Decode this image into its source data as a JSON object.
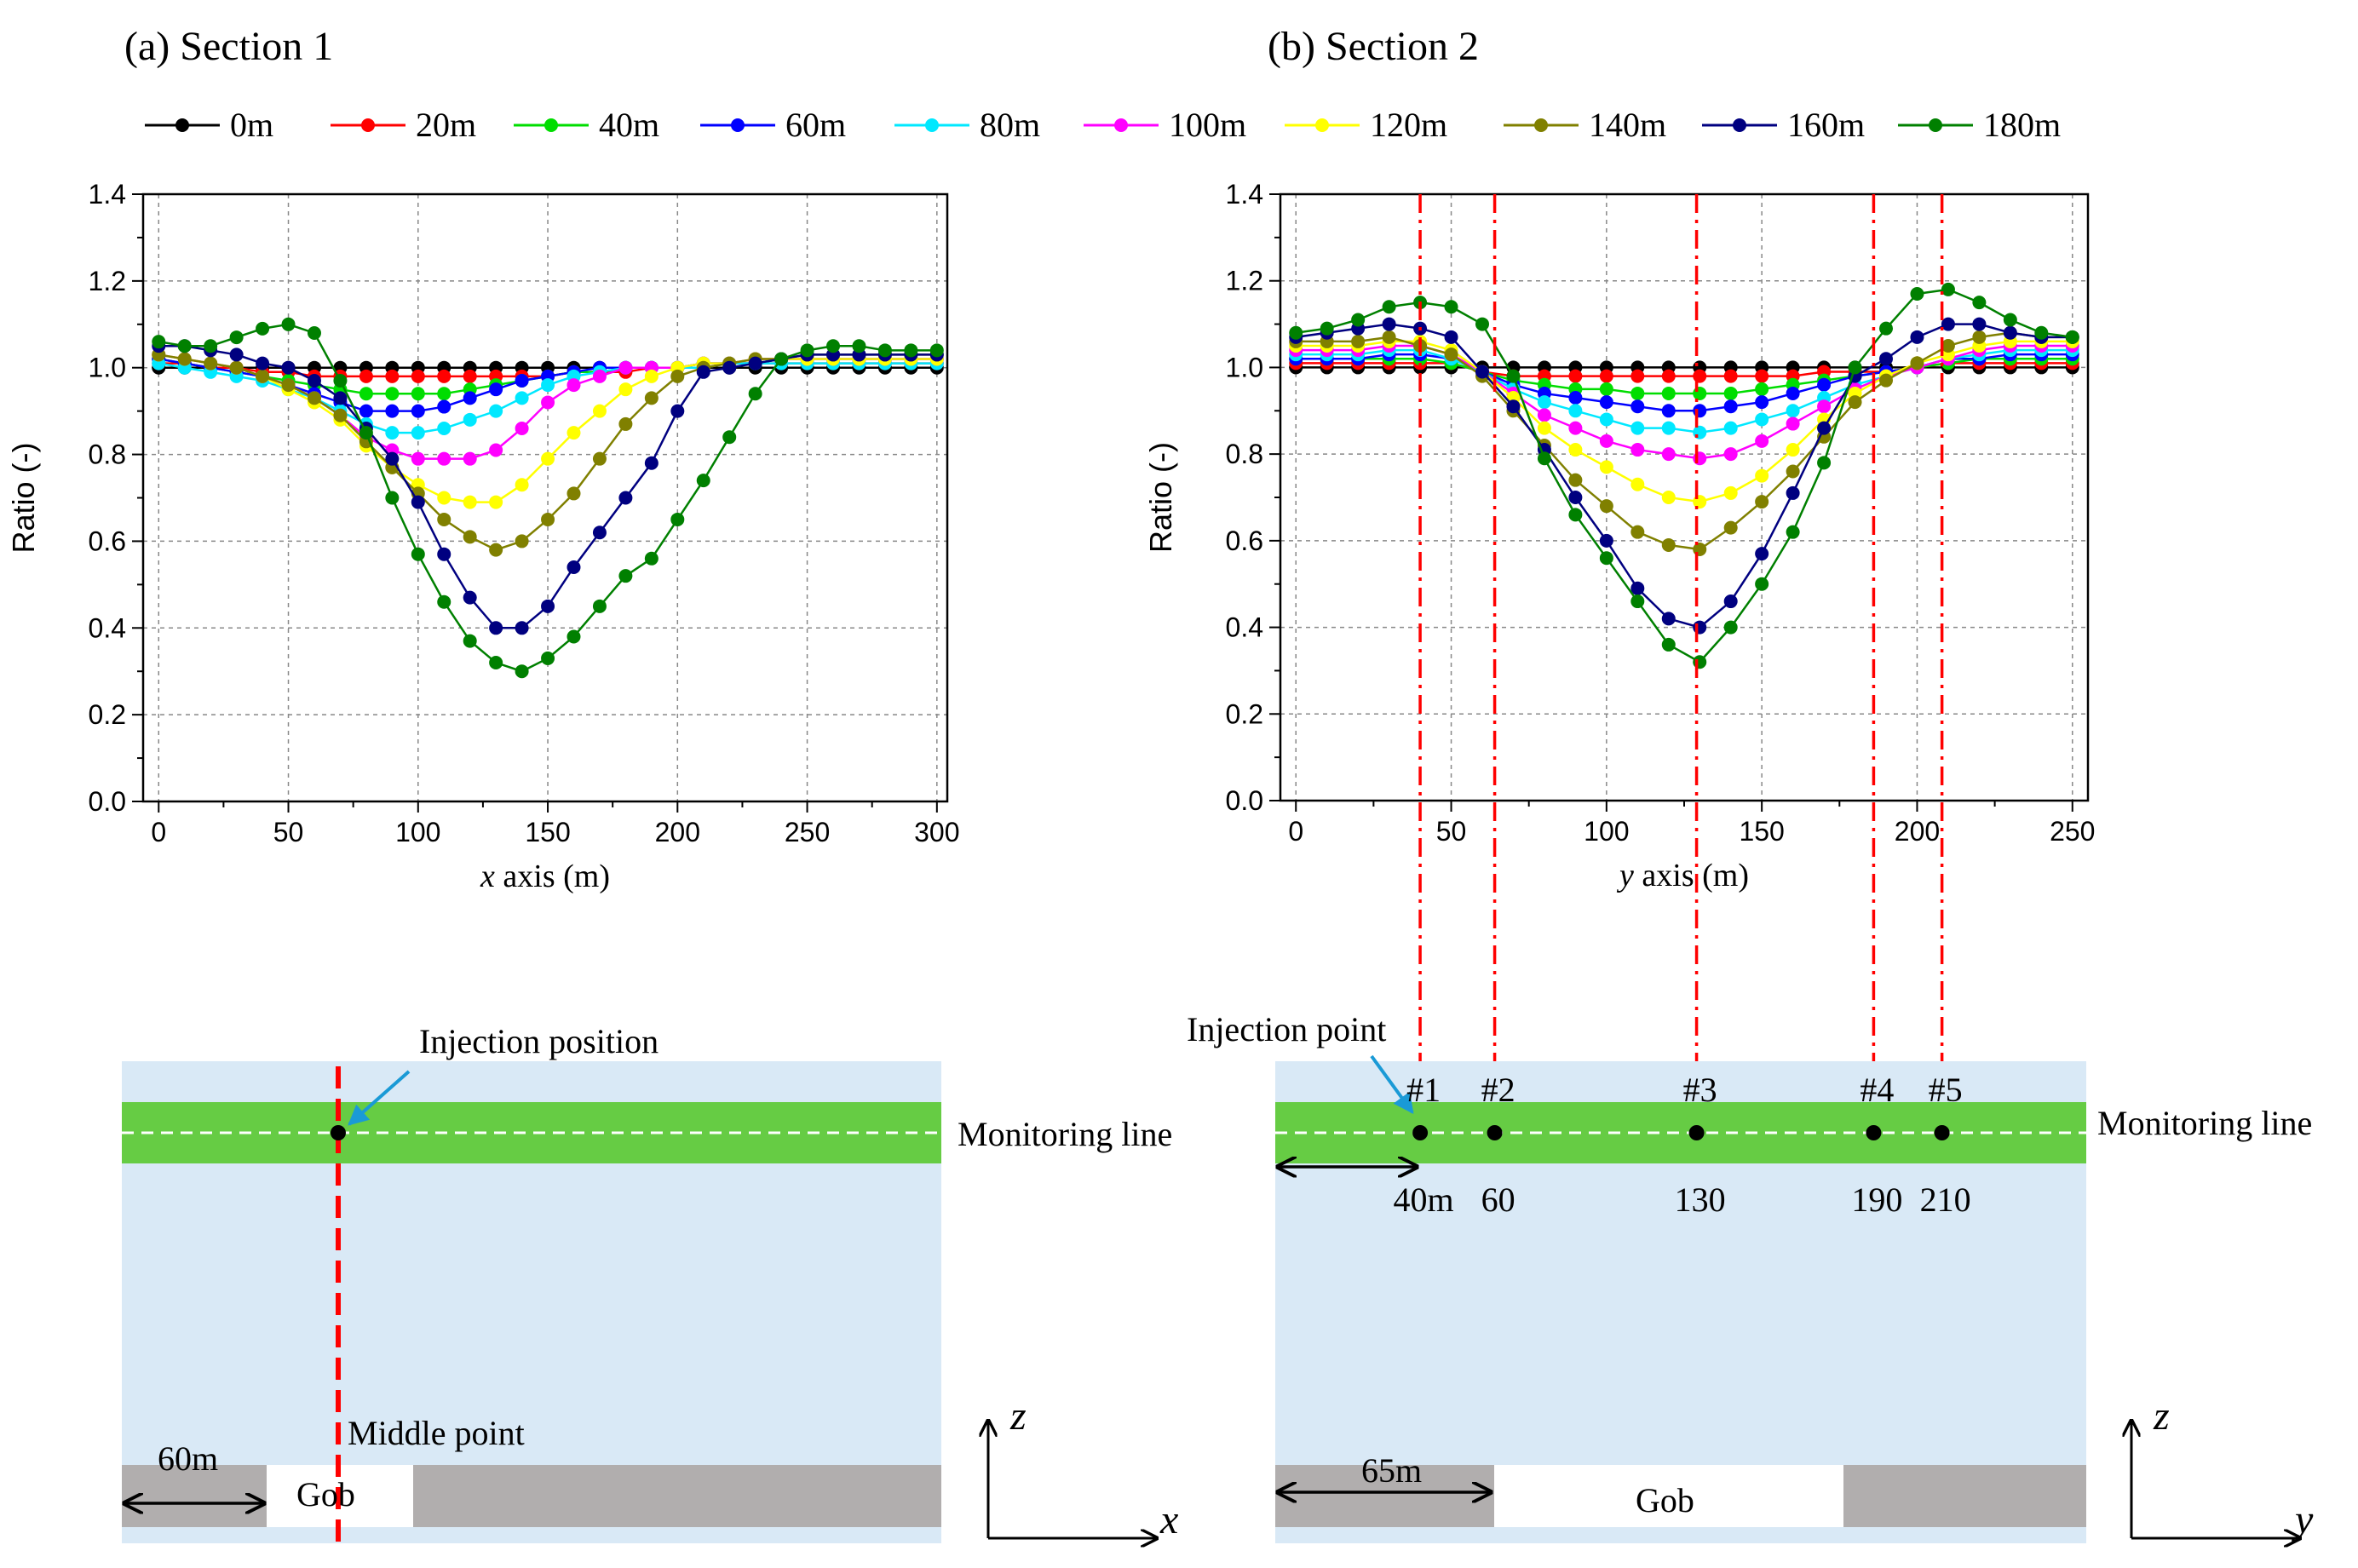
{
  "figure": {
    "panel_a_title": "(a) Section 1",
    "panel_b_title": "(b) Section 2",
    "legend": [
      {
        "label": "0m",
        "color": "#000000"
      },
      {
        "label": "20m",
        "color": "#ff0000"
      },
      {
        "label": "40m",
        "color": "#00dd00"
      },
      {
        "label": "60m",
        "color": "#0000ff"
      },
      {
        "label": "80m",
        "color": "#00e8ff"
      },
      {
        "label": "100m",
        "color": "#ff00ff"
      },
      {
        "label": "120m",
        "color": "#ffff00"
      },
      {
        "label": "140m",
        "color": "#808000"
      },
      {
        "label": "160m",
        "color": "#000080"
      },
      {
        "label": "180m",
        "color": "#008000"
      }
    ]
  },
  "chart_data": [
    {
      "type": "line",
      "title": "(a) Section 1",
      "xlabel_italic": "x",
      "xlabel_rest": " axis (m)",
      "ylabel": "Ratio (-)",
      "xlim": [
        -6,
        304
      ],
      "ylim": [
        0,
        1.4
      ],
      "xticks": [
        "0",
        "50",
        "100",
        "150",
        "200",
        "250",
        "300"
      ],
      "xtick_values": [
        0,
        50,
        100,
        150,
        200,
        250,
        300
      ],
      "yticks": [
        "0.0",
        "0.2",
        "0.4",
        "0.6",
        "0.8",
        "1.0",
        "1.2",
        "1.4"
      ],
      "ytick_values": [
        0,
        0.2,
        0.4,
        0.6,
        0.8,
        1.0,
        1.2,
        1.4
      ],
      "grid": true,
      "x": [
        0,
        10,
        20,
        30,
        40,
        50,
        60,
        70,
        80,
        90,
        100,
        110,
        120,
        130,
        140,
        150,
        160,
        170,
        180,
        190,
        200,
        210,
        220,
        230,
        240,
        250,
        260,
        270,
        280,
        290,
        300
      ],
      "series": [
        {
          "name": "0m",
          "values": [
            1.0,
            1.0,
            1.0,
            1.0,
            1.0,
            1.0,
            1.0,
            1.0,
            1.0,
            1.0,
            1.0,
            1.0,
            1.0,
            1.0,
            1.0,
            1.0,
            1.0,
            1.0,
            1.0,
            1.0,
            1.0,
            1.0,
            1.0,
            1.0,
            1.0,
            1.0,
            1.0,
            1.0,
            1.0,
            1.0,
            1.0
          ]
        },
        {
          "name": "20m",
          "values": [
            1.01,
            1.01,
            1.0,
            1.0,
            0.99,
            0.99,
            0.98,
            0.98,
            0.98,
            0.98,
            0.98,
            0.98,
            0.98,
            0.98,
            0.98,
            0.98,
            0.99,
            0.99,
            0.99,
            1.0,
            1.0,
            1.0,
            1.01,
            1.01,
            1.01,
            1.01,
            1.01,
            1.01,
            1.01,
            1.01,
            1.01
          ]
        },
        {
          "name": "40m",
          "values": [
            1.02,
            1.01,
            1.0,
            0.99,
            0.98,
            0.97,
            0.96,
            0.95,
            0.94,
            0.94,
            0.94,
            0.94,
            0.95,
            0.96,
            0.97,
            0.98,
            0.99,
            0.99,
            1.0,
            1.0,
            1.0,
            1.01,
            1.01,
            1.01,
            1.02,
            1.02,
            1.02,
            1.02,
            1.02,
            1.02,
            1.02
          ]
        },
        {
          "name": "60m",
          "values": [
            1.02,
            1.01,
            1.0,
            0.99,
            0.98,
            0.96,
            0.94,
            0.92,
            0.9,
            0.9,
            0.9,
            0.91,
            0.93,
            0.95,
            0.97,
            0.98,
            0.99,
            1.0,
            1.0,
            1.0,
            1.0,
            1.01,
            1.01,
            1.01,
            1.02,
            1.02,
            1.02,
            1.02,
            1.02,
            1.02,
            1.02
          ]
        },
        {
          "name": "80m",
          "values": [
            1.01,
            1.0,
            0.99,
            0.98,
            0.97,
            0.95,
            0.93,
            0.9,
            0.87,
            0.85,
            0.85,
            0.86,
            0.88,
            0.9,
            0.93,
            0.96,
            0.98,
            0.99,
            1.0,
            1.0,
            1.0,
            1.0,
            1.01,
            1.01,
            1.01,
            1.01,
            1.01,
            1.01,
            1.01,
            1.01,
            1.01
          ]
        },
        {
          "name": "100m",
          "values": [
            1.03,
            1.02,
            1.01,
            1.0,
            0.98,
            0.96,
            0.93,
            0.89,
            0.84,
            0.81,
            0.79,
            0.79,
            0.79,
            0.81,
            0.86,
            0.92,
            0.96,
            0.98,
            1.0,
            1.0,
            1.0,
            1.01,
            1.01,
            1.02,
            1.02,
            1.02,
            1.02,
            1.02,
            1.02,
            1.02,
            1.02
          ]
        },
        {
          "name": "120m",
          "values": [
            1.03,
            1.02,
            1.01,
            1.0,
            0.98,
            0.95,
            0.92,
            0.88,
            0.82,
            0.77,
            0.73,
            0.7,
            0.69,
            0.69,
            0.73,
            0.79,
            0.85,
            0.9,
            0.95,
            0.98,
            1.0,
            1.01,
            1.01,
            1.02,
            1.02,
            1.02,
            1.02,
            1.02,
            1.02,
            1.02,
            1.02
          ]
        },
        {
          "name": "140m",
          "values": [
            1.03,
            1.02,
            1.01,
            1.0,
            0.98,
            0.96,
            0.93,
            0.89,
            0.83,
            0.77,
            0.71,
            0.65,
            0.61,
            0.58,
            0.6,
            0.65,
            0.71,
            0.79,
            0.87,
            0.93,
            0.98,
            1.0,
            1.01,
            1.02,
            1.02,
            1.03,
            1.03,
            1.03,
            1.03,
            1.03,
            1.03
          ]
        },
        {
          "name": "160m",
          "values": [
            1.05,
            1.05,
            1.04,
            1.03,
            1.01,
            1.0,
            0.97,
            0.93,
            0.86,
            0.79,
            0.69,
            0.57,
            0.47,
            0.4,
            0.4,
            0.45,
            0.54,
            0.62,
            0.7,
            0.78,
            0.9,
            0.99,
            1.0,
            1.01,
            1.02,
            1.03,
            1.03,
            1.03,
            1.03,
            1.03,
            1.03
          ]
        },
        {
          "name": "180m",
          "values": [
            1.06,
            1.05,
            1.05,
            1.07,
            1.09,
            1.1,
            1.08,
            0.97,
            0.85,
            0.7,
            0.57,
            0.46,
            0.37,
            0.32,
            0.3,
            0.33,
            0.38,
            0.45,
            0.52,
            0.56,
            0.65,
            0.74,
            0.84,
            0.94,
            1.02,
            1.04,
            1.05,
            1.05,
            1.04,
            1.04,
            1.04
          ]
        }
      ]
    },
    {
      "type": "line",
      "title": "(b) Section 2",
      "xlabel_italic": "y",
      "xlabel_rest": " axis (m)",
      "ylabel": "Ratio (-)",
      "xlim": [
        -5,
        255
      ],
      "ylim": [
        0,
        1.4
      ],
      "xticks": [
        "0",
        "50",
        "100",
        "150",
        "200",
        "250"
      ],
      "xtick_values": [
        0,
        50,
        100,
        150,
        200,
        250
      ],
      "yticks": [
        "0.0",
        "0.2",
        "0.4",
        "0.6",
        "0.8",
        "1.0",
        "1.2",
        "1.4"
      ],
      "ytick_values": [
        0,
        0.2,
        0.4,
        0.6,
        0.8,
        1.0,
        1.2,
        1.4
      ],
      "grid": true,
      "vlines": [
        40,
        64,
        129,
        186,
        208
      ],
      "x": [
        0,
        10,
        20,
        30,
        40,
        50,
        60,
        70,
        80,
        90,
        100,
        110,
        120,
        130,
        140,
        150,
        160,
        170,
        180,
        190,
        200,
        210,
        220,
        230,
        240,
        250
      ],
      "series": [
        {
          "name": "0m",
          "values": [
            1.0,
            1.0,
            1.0,
            1.0,
            1.0,
            1.0,
            1.0,
            1.0,
            1.0,
            1.0,
            1.0,
            1.0,
            1.0,
            1.0,
            1.0,
            1.0,
            1.0,
            1.0,
            1.0,
            1.0,
            1.0,
            1.0,
            1.0,
            1.0,
            1.0,
            1.0
          ]
        },
        {
          "name": "20m",
          "values": [
            1.01,
            1.01,
            1.01,
            1.01,
            1.01,
            1.01,
            0.99,
            0.98,
            0.98,
            0.98,
            0.98,
            0.98,
            0.98,
            0.98,
            0.98,
            0.98,
            0.98,
            0.99,
            0.99,
            0.99,
            1.0,
            1.01,
            1.01,
            1.01,
            1.01,
            1.01
          ]
        },
        {
          "name": "40m",
          "values": [
            1.02,
            1.02,
            1.02,
            1.02,
            1.02,
            1.01,
            0.99,
            0.97,
            0.96,
            0.95,
            0.95,
            0.94,
            0.94,
            0.94,
            0.94,
            0.95,
            0.96,
            0.97,
            0.98,
            0.99,
            1.0,
            1.01,
            1.02,
            1.02,
            1.02,
            1.02
          ]
        },
        {
          "name": "60m",
          "values": [
            1.02,
            1.02,
            1.02,
            1.03,
            1.03,
            1.02,
            0.99,
            0.96,
            0.94,
            0.93,
            0.92,
            0.91,
            0.9,
            0.9,
            0.91,
            0.92,
            0.94,
            0.96,
            0.98,
            0.99,
            1.0,
            1.02,
            1.02,
            1.03,
            1.03,
            1.03
          ]
        },
        {
          "name": "80m",
          "values": [
            1.03,
            1.03,
            1.03,
            1.04,
            1.04,
            1.02,
            0.99,
            0.95,
            0.92,
            0.9,
            0.88,
            0.86,
            0.86,
            0.85,
            0.86,
            0.88,
            0.9,
            0.93,
            0.96,
            0.98,
            1.0,
            1.02,
            1.03,
            1.04,
            1.04,
            1.04
          ]
        },
        {
          "name": "100m",
          "values": [
            1.04,
            1.04,
            1.04,
            1.05,
            1.05,
            1.03,
            0.99,
            0.94,
            0.89,
            0.86,
            0.83,
            0.81,
            0.8,
            0.79,
            0.8,
            0.83,
            0.87,
            0.91,
            0.95,
            0.98,
            1.0,
            1.02,
            1.04,
            1.05,
            1.05,
            1.05
          ]
        },
        {
          "name": "120m",
          "values": [
            1.05,
            1.05,
            1.05,
            1.06,
            1.06,
            1.04,
            0.99,
            0.93,
            0.86,
            0.81,
            0.77,
            0.73,
            0.7,
            0.69,
            0.71,
            0.75,
            0.81,
            0.88,
            0.94,
            0.98,
            1.01,
            1.03,
            1.05,
            1.06,
            1.06,
            1.06
          ]
        },
        {
          "name": "140m",
          "values": [
            1.06,
            1.06,
            1.06,
            1.07,
            1.05,
            1.03,
            0.98,
            0.9,
            0.82,
            0.74,
            0.68,
            0.62,
            0.59,
            0.58,
            0.63,
            0.69,
            0.76,
            0.84,
            0.92,
            0.97,
            1.01,
            1.05,
            1.07,
            1.08,
            1.07,
            1.07
          ]
        },
        {
          "name": "160m",
          "values": [
            1.07,
            1.08,
            1.09,
            1.1,
            1.09,
            1.07,
            0.99,
            0.91,
            0.81,
            0.7,
            0.6,
            0.49,
            0.42,
            0.4,
            0.46,
            0.57,
            0.71,
            0.86,
            0.98,
            1.02,
            1.07,
            1.1,
            1.1,
            1.08,
            1.07,
            1.07
          ]
        },
        {
          "name": "180m",
          "values": [
            1.08,
            1.09,
            1.11,
            1.14,
            1.15,
            1.14,
            1.1,
            0.98,
            0.79,
            0.66,
            0.56,
            0.46,
            0.36,
            0.32,
            0.4,
            0.5,
            0.62,
            0.78,
            1.0,
            1.09,
            1.17,
            1.18,
            1.15,
            1.11,
            1.08,
            1.07
          ]
        }
      ]
    }
  ],
  "schematic_a": {
    "injection_label": "Injection position",
    "monitoring_label": "Monitoring line",
    "middle_label": "Middle point",
    "dim_label": "60m",
    "gob_label": "Gob",
    "axis_z": "z",
    "axis_x": "x"
  },
  "schematic_b": {
    "injection_label": "Injection point",
    "monitoring_label": "Monitoring line",
    "points": [
      {
        "label": "#1",
        "pos": "40m"
      },
      {
        "label": "#2",
        "pos": "60"
      },
      {
        "label": "#3",
        "pos": "130"
      },
      {
        "label": "#4",
        "pos": "190"
      },
      {
        "label": "#5",
        "pos": "210"
      }
    ],
    "dim_label": "65m",
    "gob_label": "Gob",
    "axis_z": "z",
    "axis_y": "y"
  }
}
